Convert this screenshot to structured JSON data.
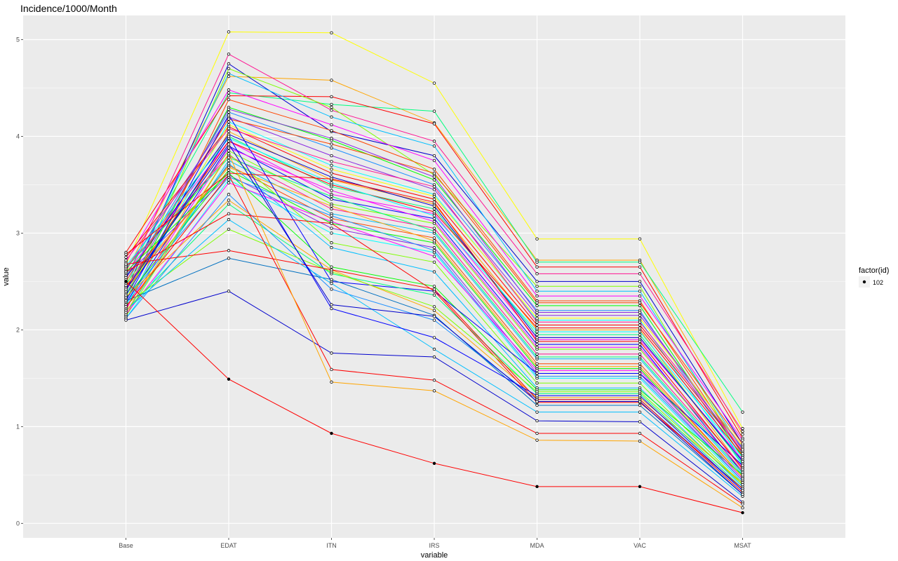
{
  "chart_data": {
    "type": "line",
    "title": "Incidence/1000/Month",
    "xlabel": "variable",
    "ylabel": "value",
    "categories": [
      "Base",
      "EDAT",
      "ITN",
      "IRS",
      "MDA",
      "VAC",
      "MSAT"
    ],
    "ylim": [
      -0.15,
      5.25
    ],
    "yticks": [
      "0",
      "1",
      "2",
      "3",
      "4",
      "5"
    ],
    "grid": true,
    "legend": {
      "title": "factor(id)",
      "entries": [
        "102"
      ],
      "placement": "right"
    },
    "series": [
      {
        "color": "#ffff00",
        "values": [
          2.67,
          5.08,
          5.07,
          4.55,
          2.94,
          2.94,
          0.98
        ]
      },
      {
        "color": "#ffa500",
        "values": [
          2.6,
          4.62,
          4.58,
          4.14,
          2.72,
          2.72,
          0.92
        ]
      },
      {
        "color": "#00ff7f",
        "values": [
          2.55,
          4.45,
          4.33,
          4.26,
          2.7,
          2.7,
          1.15
        ]
      },
      {
        "color": "#ff0000",
        "values": [
          2.8,
          4.42,
          4.41,
          4.13,
          2.65,
          2.65,
          0.88
        ]
      },
      {
        "color": "#ff1493",
        "values": [
          2.52,
          4.85,
          4.27,
          3.95,
          2.58,
          2.58,
          0.95
        ]
      },
      {
        "color": "#0000cd",
        "values": [
          2.4,
          4.75,
          4.05,
          3.8,
          2.5,
          2.5,
          0.82
        ]
      },
      {
        "color": "#7fff00",
        "values": [
          2.3,
          4.7,
          4.3,
          3.6,
          2.45,
          2.45,
          0.7
        ]
      },
      {
        "color": "#00bfff",
        "values": [
          2.45,
          4.65,
          4.2,
          3.9,
          2.4,
          2.4,
          0.76
        ]
      },
      {
        "color": "#ff00ff",
        "values": [
          2.7,
          4.48,
          4.12,
          3.75,
          2.35,
          2.35,
          0.86
        ]
      },
      {
        "color": "#ff4500",
        "values": [
          2.2,
          4.38,
          4.06,
          3.66,
          2.3,
          2.3,
          0.72
        ]
      },
      {
        "color": "#00ff00",
        "values": [
          2.35,
          4.3,
          3.96,
          3.55,
          2.25,
          2.25,
          0.68
        ]
      },
      {
        "color": "#1e90ff",
        "values": [
          2.5,
          4.25,
          3.88,
          3.5,
          2.2,
          2.2,
          0.64
        ]
      },
      {
        "color": "#8a2be2",
        "values": [
          2.62,
          4.2,
          3.8,
          3.45,
          2.15,
          2.15,
          0.78
        ]
      },
      {
        "color": "#00ffff",
        "values": [
          2.25,
          4.15,
          3.7,
          3.4,
          2.1,
          2.1,
          0.6
        ]
      },
      {
        "color": "#ff0000",
        "values": [
          2.75,
          4.1,
          3.62,
          3.35,
          2.05,
          2.05,
          0.74
        ]
      },
      {
        "color": "#ffa500",
        "values": [
          2.15,
          4.05,
          3.55,
          3.3,
          2.0,
          2.0,
          0.56
        ]
      },
      {
        "color": "#00ff7f",
        "values": [
          2.38,
          4.0,
          3.48,
          3.25,
          1.95,
          1.95,
          0.62
        ]
      },
      {
        "color": "#ff00ff",
        "values": [
          2.58,
          3.95,
          3.4,
          3.2,
          1.9,
          1.9,
          0.66
        ]
      },
      {
        "color": "#0000ff",
        "values": [
          2.28,
          3.9,
          3.35,
          3.15,
          1.85,
          1.85,
          0.52
        ]
      },
      {
        "color": "#7fff00",
        "values": [
          2.48,
          3.85,
          3.3,
          3.1,
          1.8,
          1.8,
          0.58
        ]
      },
      {
        "color": "#ff1493",
        "values": [
          2.65,
          3.8,
          3.25,
          3.05,
          1.75,
          1.75,
          0.54
        ]
      },
      {
        "color": "#00bfff",
        "values": [
          2.18,
          3.75,
          3.2,
          3.0,
          1.7,
          1.7,
          0.5
        ]
      },
      {
        "color": "#ff4500",
        "values": [
          2.42,
          3.7,
          3.15,
          2.95,
          1.65,
          1.65,
          0.48
        ]
      },
      {
        "color": "#00ff00",
        "values": [
          2.33,
          3.65,
          3.1,
          2.9,
          1.6,
          1.6,
          0.46
        ]
      },
      {
        "color": "#8a2be2",
        "values": [
          2.56,
          3.6,
          3.05,
          2.85,
          1.55,
          1.55,
          0.44
        ]
      },
      {
        "color": "#00ffff",
        "values": [
          2.12,
          3.55,
          3.0,
          2.8,
          1.5,
          1.5,
          0.42
        ]
      },
      {
        "color": "#ff0000",
        "values": [
          2.44,
          3.95,
          3.5,
          3.22,
          2.02,
          2.02,
          0.7
        ]
      },
      {
        "color": "#ffff00",
        "values": [
          2.36,
          4.12,
          3.66,
          3.38,
          2.12,
          2.12,
          0.8
        ]
      },
      {
        "color": "#0000cd",
        "values": [
          2.54,
          4.02,
          3.58,
          3.28,
          1.92,
          1.92,
          0.64
        ]
      },
      {
        "color": "#ff00ff",
        "values": [
          2.22,
          3.88,
          3.44,
          3.12,
          1.82,
          1.82,
          0.58
        ]
      },
      {
        "color": "#00ff7f",
        "values": [
          2.64,
          3.78,
          3.38,
          3.02,
          1.72,
          1.72,
          0.52
        ]
      },
      {
        "color": "#ffa500",
        "values": [
          2.46,
          3.68,
          3.28,
          2.92,
          1.62,
          1.62,
          0.48
        ]
      },
      {
        "color": "#1e90ff",
        "values": [
          2.32,
          3.58,
          3.18,
          2.82,
          1.52,
          1.52,
          0.44
        ]
      },
      {
        "color": "#ff1493",
        "values": [
          2.72,
          4.08,
          3.74,
          3.48,
          2.08,
          2.08,
          0.76
        ]
      },
      {
        "color": "#7fff00",
        "values": [
          2.14,
          3.82,
          2.9,
          2.7,
          1.45,
          1.45,
          0.4
        ]
      },
      {
        "color": "#00bfff",
        "values": [
          2.26,
          3.72,
          2.85,
          2.6,
          1.4,
          1.4,
          0.38
        ]
      },
      {
        "color": "#ff4500",
        "values": [
          2.5,
          4.18,
          3.92,
          3.62,
          2.28,
          2.28,
          0.82
        ]
      },
      {
        "color": "#8a2be2",
        "values": [
          2.4,
          4.28,
          3.98,
          3.58,
          2.18,
          2.18,
          0.72
        ]
      },
      {
        "color": "#00ff00",
        "values": [
          2.6,
          3.62,
          2.65,
          2.45,
          1.38,
          1.38,
          0.5
        ]
      },
      {
        "color": "#0000ff",
        "values": [
          2.3,
          4.22,
          2.5,
          2.4,
          1.55,
          1.55,
          0.6
        ]
      },
      {
        "color": "#ff00ff",
        "values": [
          2.16,
          3.52,
          3.12,
          2.76,
          1.58,
          1.58,
          0.46
        ]
      },
      {
        "color": "#00ffff",
        "values": [
          2.66,
          3.98,
          3.52,
          3.18,
          1.98,
          1.98,
          0.68
        ]
      },
      {
        "color": "#ff0000",
        "values": [
          2.78,
          3.62,
          3.56,
          3.32,
          1.88,
          1.88,
          0.56
        ]
      },
      {
        "color": "#ffa500",
        "values": [
          2.34,
          3.34,
          2.62,
          2.2,
          1.3,
          1.3,
          0.42
        ]
      },
      {
        "color": "#00ff7f",
        "values": [
          2.2,
          3.3,
          2.58,
          2.36,
          1.34,
          1.34,
          0.36
        ]
      },
      {
        "color": "#1e90ff",
        "values": [
          2.12,
          3.4,
          2.42,
          2.1,
          1.28,
          1.28,
          0.34
        ]
      },
      {
        "color": "#ff0000",
        "values": [
          2.6,
          3.2,
          3.1,
          2.4,
          1.25,
          1.25,
          0.36
        ]
      },
      {
        "color": "#7fff00",
        "values": [
          2.26,
          3.04,
          2.6,
          2.24,
          1.36,
          1.36,
          0.4
        ]
      },
      {
        "color": "#ff0000",
        "values": [
          2.68,
          2.82,
          2.62,
          2.42,
          1.28,
          1.28,
          0.32
        ]
      },
      {
        "color": "#0070c0",
        "values": [
          2.3,
          2.74,
          2.52,
          2.15,
          1.22,
          1.22,
          0.3
        ]
      },
      {
        "color": "#00bfff",
        "values": [
          2.2,
          3.14,
          2.48,
          1.8,
          1.15,
          1.15,
          0.28
        ]
      },
      {
        "color": "#0000cd",
        "values": [
          2.1,
          2.4,
          1.76,
          1.72,
          1.06,
          1.05,
          0.22
        ]
      },
      {
        "color": "#0000ff",
        "values": [
          2.36,
          4.0,
          2.22,
          1.92,
          1.32,
          1.32,
          0.34
        ]
      },
      {
        "color": "#0000cd",
        "values": [
          2.42,
          3.92,
          2.26,
          2.14,
          1.26,
          1.26,
          0.3
        ]
      },
      {
        "color": "#ff0000",
        "values": [
          2.24,
          3.6,
          1.59,
          1.48,
          0.93,
          0.93,
          0.2
        ]
      },
      {
        "color": "#ffa500",
        "values": [
          2.18,
          3.82,
          1.46,
          1.37,
          0.86,
          0.85,
          0.16
        ]
      },
      {
        "color": "#ff0000",
        "values": [
          2.5,
          1.49,
          0.93,
          0.62,
          0.38,
          0.38,
          0.11
        ]
      }
    ]
  }
}
